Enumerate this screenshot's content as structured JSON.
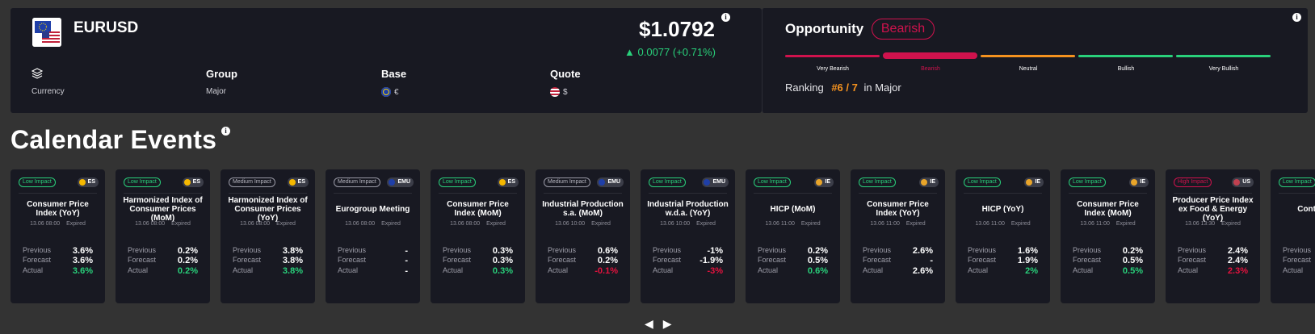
{
  "instrument": {
    "symbol": "EURUSD",
    "price": "$1.0792",
    "change": "▲ 0.0077 (+0.71%)",
    "info_icon": "i",
    "meta": [
      {
        "head_icon": "stack-icon",
        "value": "Currency"
      },
      {
        "head": "Group",
        "value": "Major"
      },
      {
        "head": "Base",
        "value": "€",
        "flag": "eu-flag-icon"
      },
      {
        "head": "Quote",
        "value": "$",
        "flag": "us-flag-icon"
      }
    ]
  },
  "opportunity": {
    "title": "Opportunity",
    "badge": "Bearish",
    "scale": [
      "Very Bearish",
      "Bearish",
      "Neutral",
      "Bullish",
      "Very Bullish"
    ],
    "active_index": 1,
    "scale_colors": [
      "#d0124d",
      "#d0124d",
      "#f5921f",
      "#29d17b",
      "#29d17b"
    ],
    "ranking_label": "Ranking",
    "ranking_value": "#6 / 7",
    "ranking_suffix": "in Major",
    "info_icon": "i"
  },
  "calendar": {
    "title": "Calendar Events",
    "info_icon": "i",
    "labels": {
      "previous": "Previous",
      "forecast": "Forecast",
      "actual": "Actual",
      "status": "Expired"
    },
    "events": [
      {
        "impact": "Low Impact",
        "level": "low",
        "region": "ES",
        "name": "Consumer Price Index (YoY)",
        "time": "13.06 08:00",
        "previous": "3.6%",
        "forecast": "3.6%",
        "actual": "3.6%",
        "actual_state": "pos"
      },
      {
        "impact": "Low Impact",
        "level": "low",
        "region": "ES",
        "name": "Harmonized Index of Consumer Prices (MoM)",
        "time": "13.06 08:00",
        "previous": "0.2%",
        "forecast": "0.2%",
        "actual": "0.2%",
        "actual_state": "pos"
      },
      {
        "impact": "Medium Impact",
        "level": "medium",
        "region": "ES",
        "name": "Harmonized Index of Consumer Prices (YoY)",
        "time": "13.06 08:00",
        "previous": "3.8%",
        "forecast": "3.8%",
        "actual": "3.8%",
        "actual_state": "pos"
      },
      {
        "impact": "Medium Impact",
        "level": "medium",
        "region": "EMU",
        "name": "Eurogroup Meeting",
        "time": "13.06 08:00",
        "previous": "-",
        "forecast": "-",
        "actual": "-",
        "actual_state": "neutral"
      },
      {
        "impact": "Low Impact",
        "level": "low",
        "region": "ES",
        "name": "Consumer Price Index (MoM)",
        "time": "13.06 08:00",
        "previous": "0.3%",
        "forecast": "0.3%",
        "actual": "0.3%",
        "actual_state": "pos"
      },
      {
        "impact": "Medium Impact",
        "level": "medium",
        "region": "EMU",
        "name": "Industrial Production s.a. (MoM)",
        "time": "13.06 10:00",
        "previous": "0.6%",
        "forecast": "0.2%",
        "actual": "-0.1%",
        "actual_state": "neg"
      },
      {
        "impact": "Low Impact",
        "level": "low",
        "region": "EMU",
        "name": "Industrial Production w.d.a. (YoY)",
        "time": "13.06 10:00",
        "previous": "-1%",
        "forecast": "-1.9%",
        "actual": "-3%",
        "actual_state": "neg"
      },
      {
        "impact": "Low Impact",
        "level": "low",
        "region": "IE",
        "name": "HICP (MoM)",
        "time": "13.06 11:00",
        "previous": "0.2%",
        "forecast": "0.5%",
        "actual": "0.6%",
        "actual_state": "pos"
      },
      {
        "impact": "Low Impact",
        "level": "low",
        "region": "IE",
        "name": "Consumer Price Index (YoY)",
        "time": "13.06 11:00",
        "previous": "2.6%",
        "forecast": "-",
        "actual": "2.6%",
        "actual_state": "neutral"
      },
      {
        "impact": "Low Impact",
        "level": "low",
        "region": "IE",
        "name": "HICP (YoY)",
        "time": "13.06 11:00",
        "previous": "1.6%",
        "forecast": "1.9%",
        "actual": "2%",
        "actual_state": "pos"
      },
      {
        "impact": "Low Impact",
        "level": "low",
        "region": "IE",
        "name": "Consumer Price Index (MoM)",
        "time": "13.06 11:00",
        "previous": "0.2%",
        "forecast": "0.5%",
        "actual": "0.5%",
        "actual_state": "pos"
      },
      {
        "impact": "High Impact",
        "level": "high",
        "region": "US",
        "name": "Producer Price Index ex Food & Energy (YoY)",
        "time": "13.06 13:30",
        "previous": "2.4%",
        "forecast": "2.4%",
        "actual": "2.3%",
        "actual_state": "neg"
      },
      {
        "impact": "Low Impact",
        "level": "low",
        "region": "",
        "name": "Continu Cl",
        "time": "",
        "previous": "",
        "forecast": "",
        "actual": "",
        "actual_state": "neutral"
      }
    ],
    "region_colors": {
      "ES": "#f5b800",
      "EMU": "#1f3fa8",
      "IE": "#e9a52a",
      "US": "#c04050"
    },
    "nav": {
      "prev": "◀",
      "next": "▶"
    }
  }
}
